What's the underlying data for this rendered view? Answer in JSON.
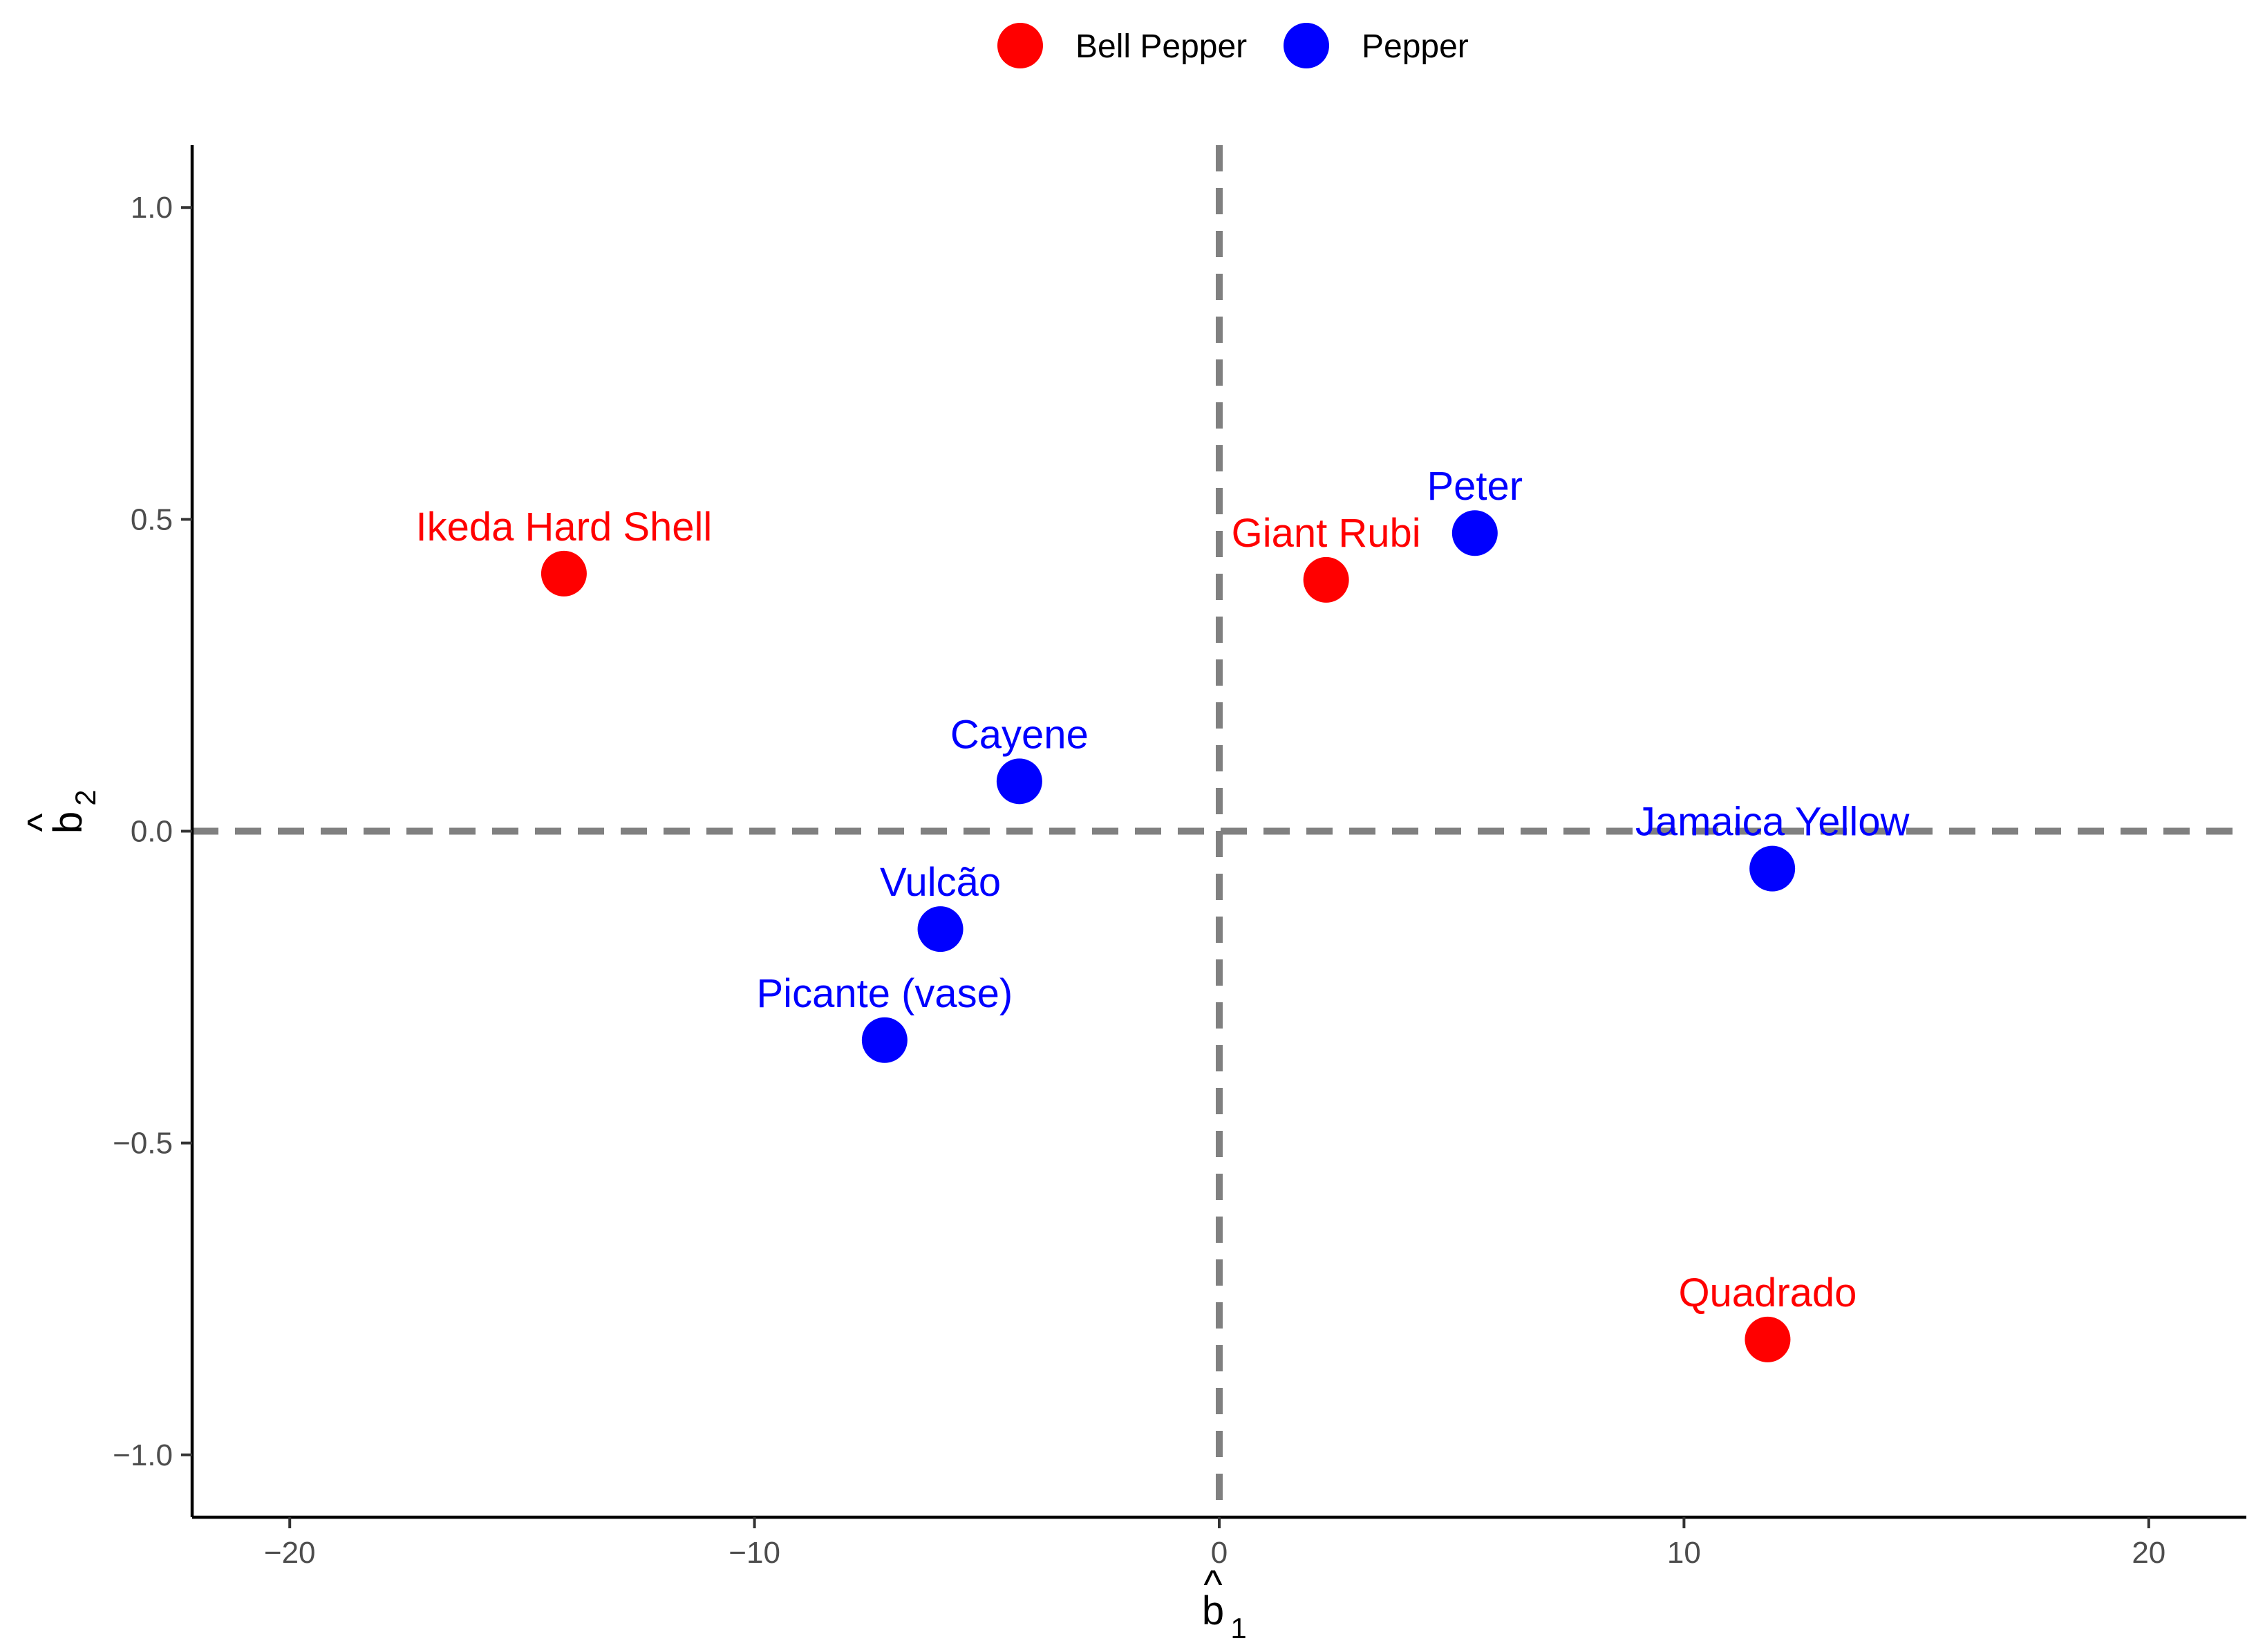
{
  "chart_data": {
    "type": "scatter",
    "title": "",
    "xlabel": "b̂₁",
    "ylabel": "b̂₂",
    "xlabel_parts": {
      "hat": "^",
      "base": "b",
      "sub": "1"
    },
    "ylabel_parts": {
      "hat": "^",
      "base": "b",
      "sub": "2"
    },
    "xlim": [
      -22.1,
      22.1
    ],
    "ylim": [
      -1.1,
      1.1
    ],
    "xticks": [
      -20,
      -10,
      0,
      10,
      20
    ],
    "xtick_labels": [
      "−20",
      "−10",
      "0",
      "10",
      "20"
    ],
    "yticks": [
      -1.0,
      -0.5,
      0.0,
      0.5,
      1.0
    ],
    "ytick_labels": [
      "−1.0",
      "−0.5",
      "0.0",
      "0.5",
      "1.0"
    ],
    "grid": false,
    "reference_lines": {
      "x": 0,
      "y": 0,
      "style": "dashed",
      "color": "#808080"
    },
    "legend": {
      "position": "top",
      "entries": [
        {
          "name": "Bell Pepper",
          "color": "#ff0000"
        },
        {
          "name": "Pepper",
          "color": "#0000ff"
        }
      ]
    },
    "series": [
      {
        "name": "Bell Pepper",
        "color": "#ff0000",
        "points": [
          {
            "label": "Ikeda Hard Shell",
            "x": -14.1,
            "y": 0.413
          },
          {
            "label": "Giant Rubi",
            "x": 2.3,
            "y": 0.403
          },
          {
            "label": "Quadrado",
            "x": 11.8,
            "y": -0.815
          }
        ]
      },
      {
        "name": "Pepper",
        "color": "#0000ff",
        "points": [
          {
            "label": "Peter",
            "x": 5.5,
            "y": 0.478
          },
          {
            "label": "Cayene",
            "x": -4.3,
            "y": 0.08
          },
          {
            "label": "Jamaica Yellow",
            "x": 11.9,
            "y": -0.06
          },
          {
            "label": "Vulcão",
            "x": -6.0,
            "y": -0.157
          },
          {
            "label": "Picante (vase)",
            "x": -7.2,
            "y": -0.335
          }
        ]
      }
    ]
  }
}
